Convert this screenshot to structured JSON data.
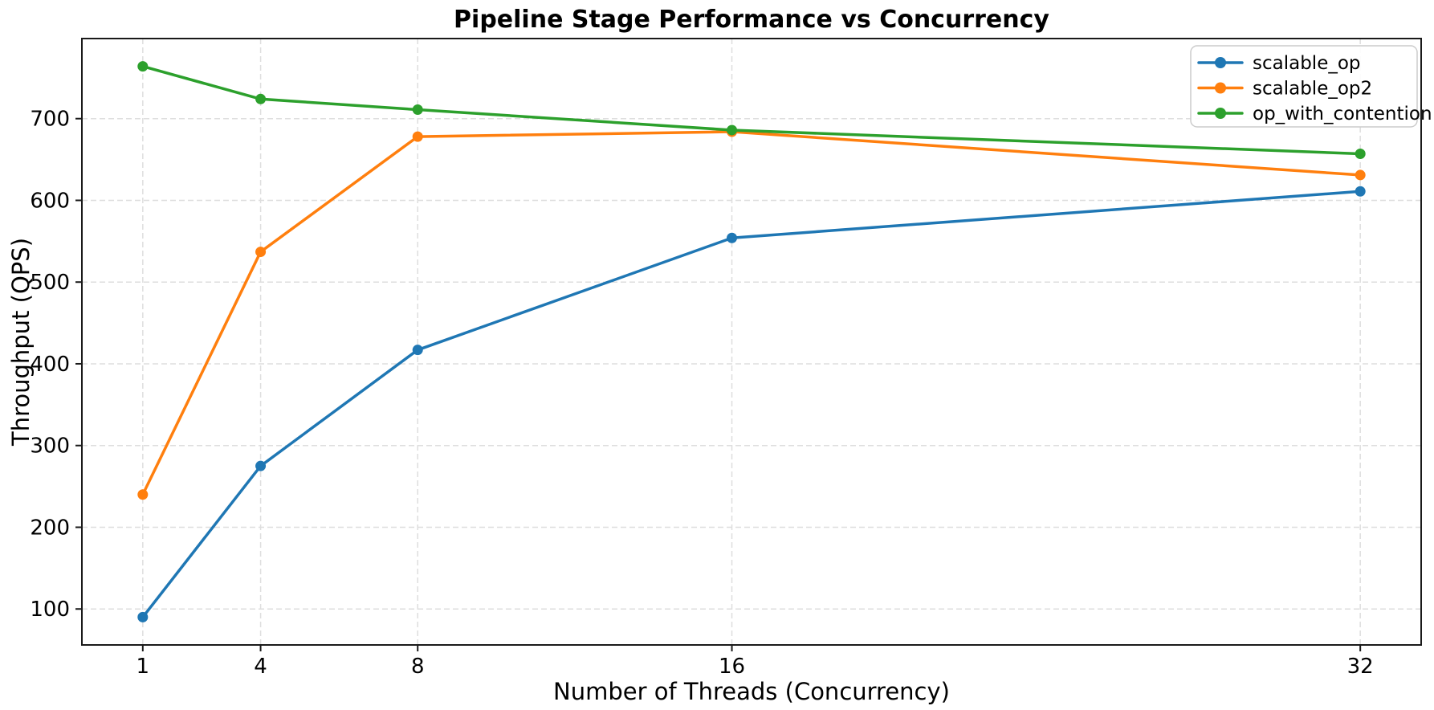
{
  "chart_data": {
    "type": "line",
    "title": "Pipeline Stage Performance vs Concurrency",
    "xlabel": "Number of Threads (Concurrency)",
    "ylabel": "Throughput (QPS)",
    "x": [
      1,
      4,
      8,
      16,
      32
    ],
    "xtick_labels": [
      "1",
      "4",
      "8",
      "16",
      "32"
    ],
    "yticks": [
      100,
      200,
      300,
      400,
      500,
      600,
      700
    ],
    "ytick_labels": [
      "100",
      "200",
      "300",
      "400",
      "500",
      "600",
      "700"
    ],
    "xlim": [
      -0.55,
      33.55
    ],
    "ylim": [
      56,
      798
    ],
    "grid": true,
    "legend_position": "upper right",
    "series": [
      {
        "name": "scalable_op",
        "color": "#1f77b4",
        "values": [
          90,
          275,
          417,
          554,
          611
        ]
      },
      {
        "name": "scalable_op2",
        "color": "#ff7f0e",
        "values": [
          240,
          537,
          678,
          684,
          631
        ]
      },
      {
        "name": "op_with_contention",
        "color": "#2ca02c",
        "values": [
          764,
          724,
          711,
          686,
          657
        ]
      }
    ],
    "style": {
      "background": "#ffffff",
      "grid_color": "#dedede",
      "spine_color": "#1a1a1a",
      "tick_color": "#1a1a1a",
      "legend_border_color": "#cccccc",
      "legend_background": "#ffffff",
      "text_color": "#000000"
    }
  }
}
